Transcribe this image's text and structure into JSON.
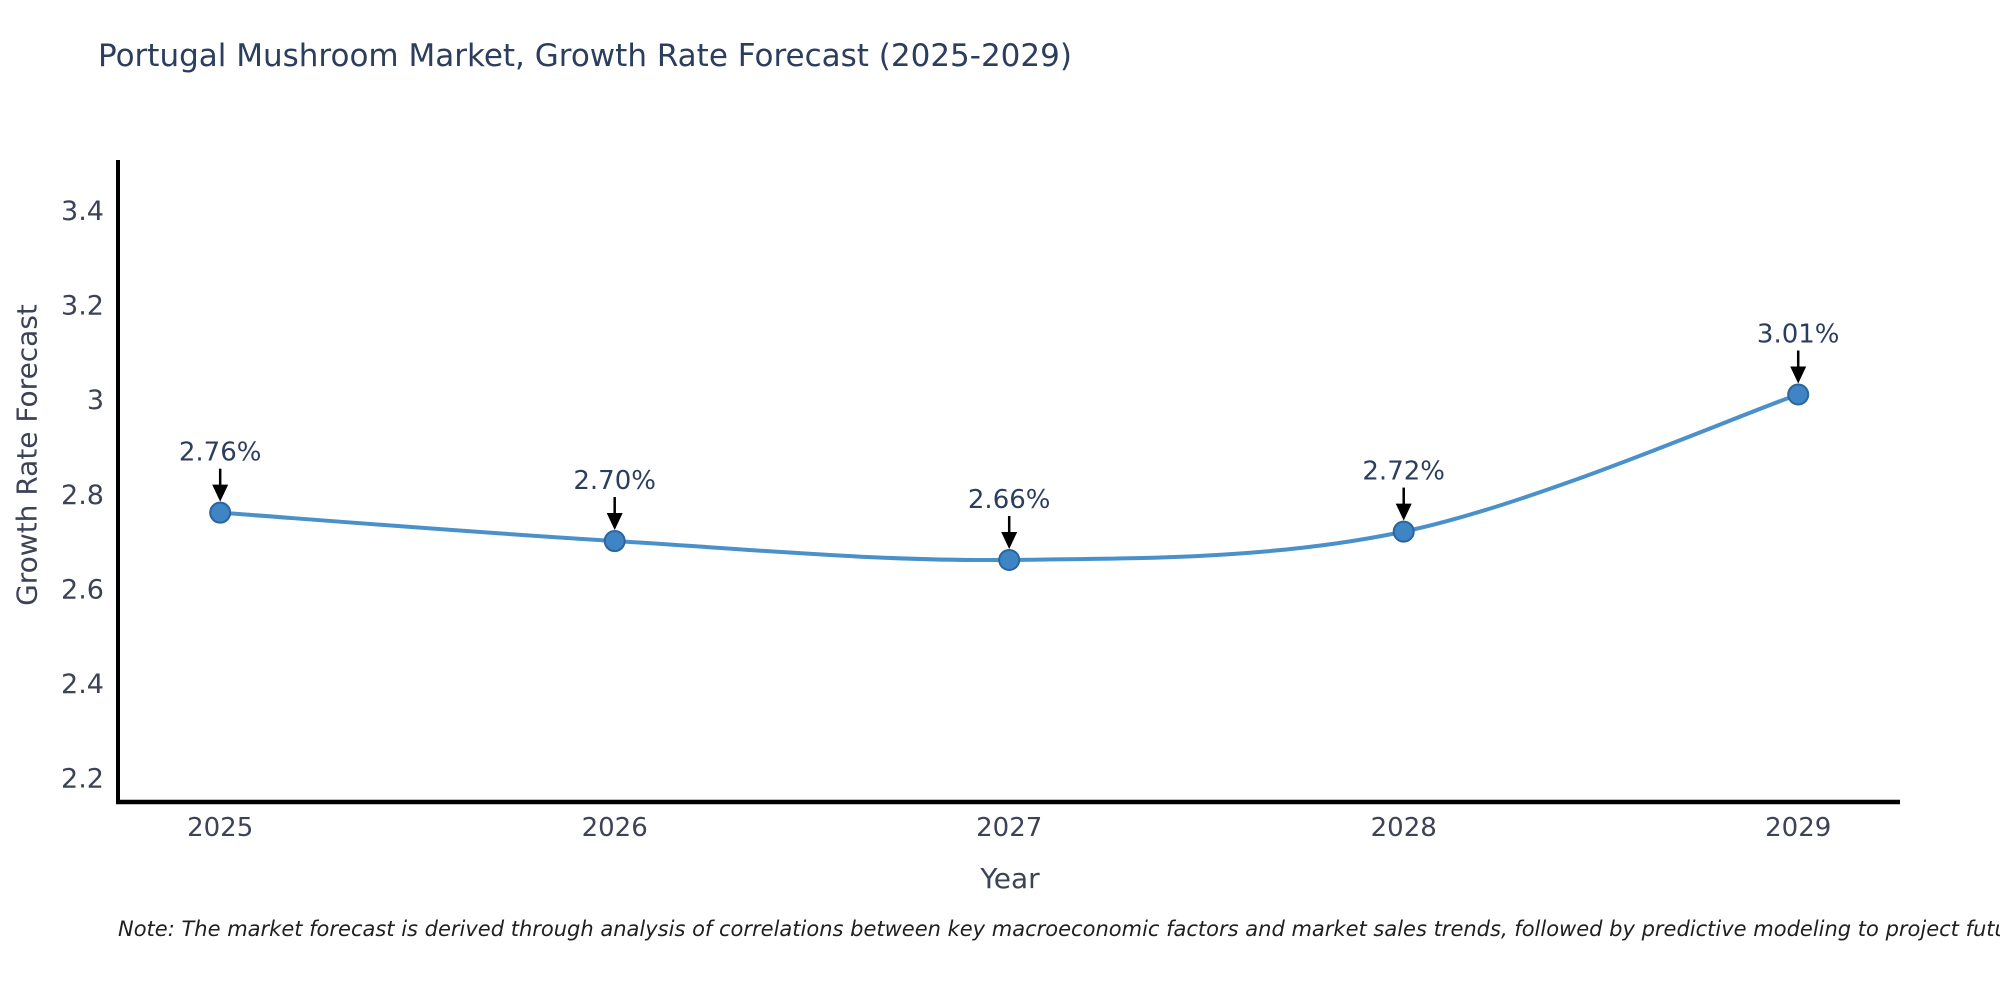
{
  "title": "Portugal Mushroom Market, Growth Rate Forecast (2025-2029)",
  "note": "Note: The market forecast is derived through analysis of correlations between key macroeconomic factors and market sales trends, followed by predictive modeling to project future sales",
  "chart_data": {
    "type": "line",
    "title": "Portugal Mushroom Market, Growth Rate Forecast (2025-2029)",
    "xlabel": "Year",
    "ylabel": "Growth Rate Forecast",
    "x": [
      2025,
      2026,
      2027,
      2028,
      2029
    ],
    "values": [
      2.76,
      2.7,
      2.66,
      2.72,
      3.01
    ],
    "point_labels": [
      "2.76%",
      "2.70%",
      "2.66%",
      "2.72%",
      "3.01%"
    ],
    "xtick_labels": [
      "2025",
      "2026",
      "2027",
      "2028",
      "2029"
    ],
    "yticks": [
      2.2,
      2.4,
      2.6,
      2.8,
      3,
      3.2,
      3.4
    ],
    "ytick_labels": [
      "2.2",
      "2.4",
      "2.6",
      "2.8",
      "3",
      "3.2",
      "3.4"
    ],
    "xlim": [
      2024.741,
      2029.258
    ],
    "ylim": [
      2.148,
      3.506
    ],
    "grid": false,
    "legend": null,
    "line_shape": "spline",
    "annotation_arrows": true,
    "colors": {
      "line": "#4a90c9",
      "marker_fill": "#3f85c6",
      "marker_edge": "#2a659e",
      "arrow": "#000000",
      "axis": "#000000",
      "title_text": "#2c3e5d",
      "tick_text": "#3c4257",
      "annotation_text": "#2c3e5d",
      "note_text": "#1f1f1f"
    }
  }
}
